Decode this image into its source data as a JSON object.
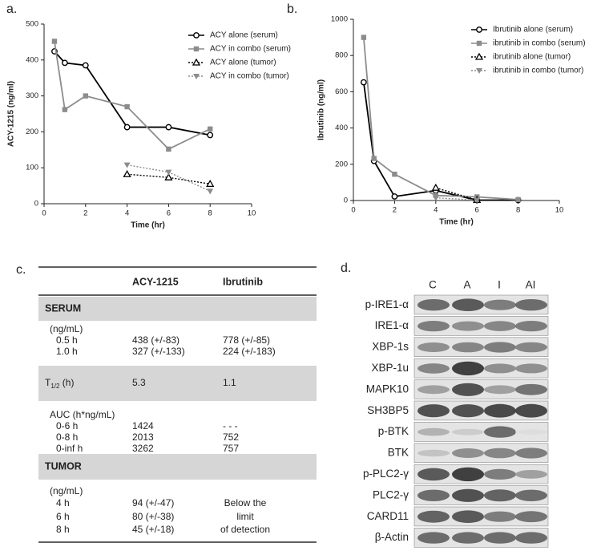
{
  "chart_data": [
    {
      "type": "line",
      "label": "a.",
      "xlabel": "Time (hr)",
      "ylabel": "ACY-1215 (ng/ml)",
      "xlim": [
        0,
        10
      ],
      "xticks": [
        0,
        2,
        4,
        6,
        8,
        10
      ],
      "ylim": [
        0,
        500
      ],
      "yticks": [
        0,
        100,
        200,
        300,
        400,
        500
      ],
      "legend": "top-right",
      "series": [
        {
          "name": "ACY alone (serum)",
          "color": "#000000",
          "marker": "circle",
          "dash": false,
          "x": [
            0.5,
            1,
            2,
            4,
            6,
            8
          ],
          "values": [
            424,
            392,
            385,
            213,
            213,
            191
          ]
        },
        {
          "name": "ACY in combo (serum)",
          "color": "#8c8c8c",
          "marker": "square",
          "dash": false,
          "x": [
            0.5,
            1,
            2,
            4,
            6,
            8
          ],
          "values": [
            452,
            262,
            300,
            270,
            152,
            208
          ]
        },
        {
          "name": "ACY alone (tumor)",
          "color": "#000000",
          "marker": "triangle",
          "dash": true,
          "x": [
            4,
            6,
            8
          ],
          "values": [
            82,
            73,
            55
          ]
        },
        {
          "name": "ACY in combo (tumor)",
          "color": "#8c8c8c",
          "marker": "triangle-down",
          "dash": true,
          "x": [
            4,
            6,
            8
          ],
          "values": [
            108,
            88,
            35
          ]
        }
      ]
    },
    {
      "type": "line",
      "label": "b.",
      "xlabel": "Time (hr)",
      "ylabel": "Ibrutinib (ng/ml)",
      "xlim": [
        0,
        10
      ],
      "xticks": [
        0,
        2,
        4,
        6,
        8,
        10
      ],
      "ylim": [
        0,
        1000
      ],
      "yticks": [
        0,
        200,
        400,
        600,
        800,
        1000
      ],
      "legend": "top-right",
      "series": [
        {
          "name": "Ibrutinib alone (serum)",
          "color": "#000000",
          "marker": "circle",
          "dash": false,
          "x": [
            0.5,
            1,
            2,
            4,
            6,
            8
          ],
          "values": [
            652,
            218,
            22,
            55,
            2,
            2
          ]
        },
        {
          "name": "ibrutinib in combo (serum)",
          "color": "#8c8c8c",
          "marker": "square",
          "dash": false,
          "x": [
            0.5,
            1,
            2,
            4,
            6,
            8
          ],
          "values": [
            900,
            232,
            145,
            28,
            20,
            5
          ]
        },
        {
          "name": "ibrutinib alone (tumor)",
          "color": "#000000",
          "marker": "triangle",
          "dash": true,
          "x": [
            4,
            6
          ],
          "values": [
            70,
            3
          ]
        },
        {
          "name": "ibrutinib in combo (tumor)",
          "color": "#8c8c8c",
          "marker": "triangle-down",
          "dash": true,
          "x": [
            4,
            6
          ],
          "values": [
            15,
            2
          ]
        }
      ]
    }
  ],
  "table": {
    "label": "c.",
    "header": [
      "ACY-1215",
      "Ibrutinib"
    ],
    "rows": [
      {
        "label": "SERUM",
        "shaded": true
      },
      {
        "label": "(ng/mL)"
      },
      {
        "label": "0.5 h",
        "cells": [
          "438 (+/-83)",
          "778 (+/-85)"
        ]
      },
      {
        "label": "1.0 h",
        "cells": [
          "327 (+/-133)",
          "224 (+/-183)"
        ]
      },
      {
        "label": {
          "main": "T",
          "sub": "1/2",
          "rest": " (h)"
        },
        "cells": [
          "5.3",
          "1.1"
        ],
        "shaded": true
      },
      {
        "label": "AUC (h*ng/mL)"
      },
      {
        "label": "0-6 h",
        "cells": [
          "1424",
          "- - -"
        ]
      },
      {
        "label": "0-8 h",
        "cells": [
          "2013",
          "752"
        ]
      },
      {
        "label": "0-inf h",
        "cells": [
          "3262",
          "757"
        ]
      },
      {
        "label": "TUMOR",
        "shaded": true
      },
      {
        "label": "(ng/mL)"
      },
      {
        "label": "4 h",
        "cells": [
          "94 (+/-47)",
          "Below the"
        ]
      },
      {
        "label": "6 h",
        "cells": [
          "80 (+/-38)",
          "limit"
        ]
      },
      {
        "label": "8 h",
        "cells": [
          "45 (+/-18)",
          "of detection"
        ]
      }
    ]
  },
  "blot": {
    "label": "d.",
    "columns": [
      "C",
      "A",
      "I",
      "AI"
    ],
    "rows": [
      "p-IRE1-α",
      "IRE1-α",
      "XBP-1s",
      "XBP-1u",
      "MAPK10",
      "SH3BP5",
      "p-BTK",
      "BTK",
      "p-PLC2-γ",
      "PLC2-γ",
      "CARD11",
      "β-Actin"
    ]
  }
}
